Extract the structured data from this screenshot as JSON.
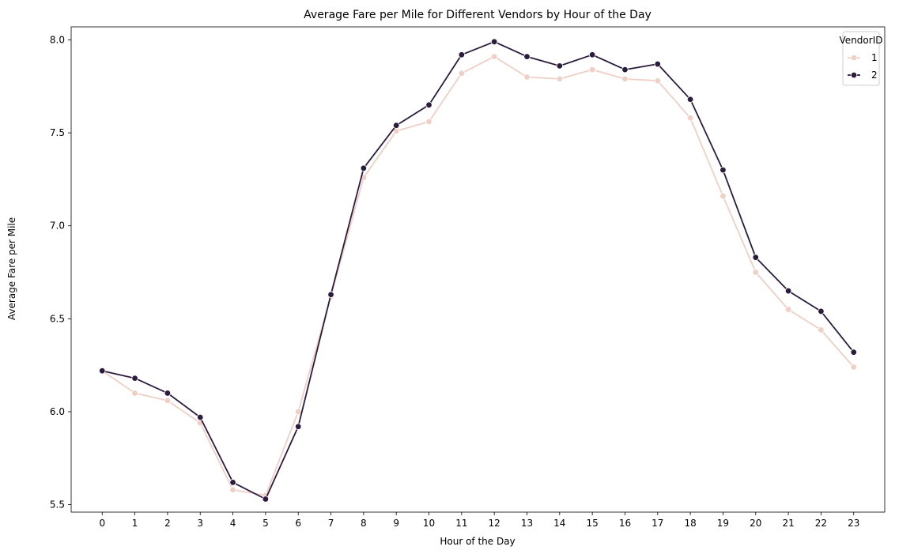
{
  "chart_data": {
    "type": "line",
    "title": "Average Fare per Mile for Different Vendors by Hour of the Day",
    "xlabel": "Hour of the Day",
    "ylabel": "Average Fare per Mile",
    "x": [
      0,
      1,
      2,
      3,
      4,
      5,
      6,
      7,
      8,
      9,
      10,
      11,
      12,
      13,
      14,
      15,
      16,
      17,
      18,
      19,
      20,
      21,
      22,
      23
    ],
    "x_tick_labels": [
      "0",
      "1",
      "2",
      "3",
      "4",
      "5",
      "6",
      "7",
      "8",
      "9",
      "10",
      "11",
      "12",
      "13",
      "14",
      "15",
      "16",
      "17",
      "18",
      "19",
      "20",
      "21",
      "22",
      "23"
    ],
    "y_ticks": [
      5.5,
      6.0,
      6.5,
      7.0,
      7.5,
      8.0
    ],
    "y_tick_labels": [
      "5.5",
      "6.0",
      "6.5",
      "7.0",
      "7.5",
      "8.0"
    ],
    "xlim": [
      -0.95,
      23.95
    ],
    "ylim": [
      5.46,
      8.07
    ],
    "grid": false,
    "legend": {
      "title": "VendorID",
      "placement": "top-right"
    },
    "series": [
      {
        "name": "1",
        "color": "#efcfc6",
        "marker": "circle",
        "values": [
          6.22,
          6.1,
          6.06,
          5.94,
          5.58,
          5.55,
          6.0,
          6.62,
          7.26,
          7.51,
          7.56,
          7.82,
          7.91,
          7.8,
          7.79,
          7.84,
          7.79,
          7.78,
          7.58,
          7.16,
          6.75,
          6.55,
          6.44,
          6.24
        ]
      },
      {
        "name": "2",
        "color": "#2b1c3e",
        "marker": "circle",
        "values": [
          6.22,
          6.18,
          6.1,
          5.97,
          5.62,
          5.53,
          5.92,
          6.63,
          7.31,
          7.54,
          7.65,
          7.92,
          7.99,
          7.91,
          7.86,
          7.92,
          7.84,
          7.87,
          7.68,
          7.3,
          6.83,
          6.65,
          6.54,
          6.32
        ]
      }
    ]
  }
}
